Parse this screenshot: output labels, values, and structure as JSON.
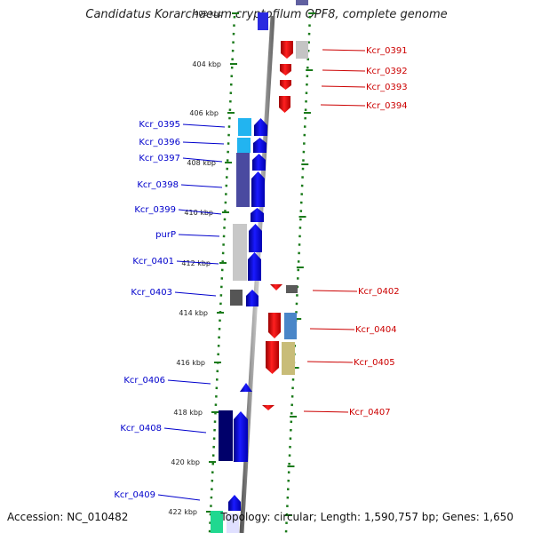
{
  "title": "Candidatus Korarchaeum cryptofilum OPF8, complete genome",
  "footer": {
    "accession": "Accession: NC_010482",
    "topology": "Topology: circular; Length: 1,590,757 bp; Genes: 1,650"
  },
  "kbp_ticks": [
    "402 kbp",
    "404 kbp",
    "406 kbp",
    "408 kbp",
    "410 kbp",
    "412 kbp",
    "414 kbp",
    "416 kbp",
    "418 kbp",
    "420 kbp",
    "422 kbp"
  ],
  "genes_left": [
    "Kcr_0395",
    "Kcr_0396",
    "Kcr_0397",
    "Kcr_0398",
    "Kcr_0399",
    "purP",
    "Kcr_0401",
    "Kcr_0403",
    "Kcr_0406",
    "Kcr_0408",
    "Kcr_0409"
  ],
  "genes_right": [
    "Kcr_0391",
    "Kcr_0392",
    "Kcr_0393",
    "Kcr_0394",
    "Kcr_0402",
    "Kcr_0404",
    "Kcr_0405",
    "Kcr_0407"
  ],
  "colors": {
    "forward_label": "#0000cc",
    "reverse_label": "#cc0000",
    "forward_gene": "#0a0aee",
    "reverse_gene": "#ee0a0a",
    "dna_strand": "#808080",
    "guide_dots": "#1a7a1a"
  }
}
